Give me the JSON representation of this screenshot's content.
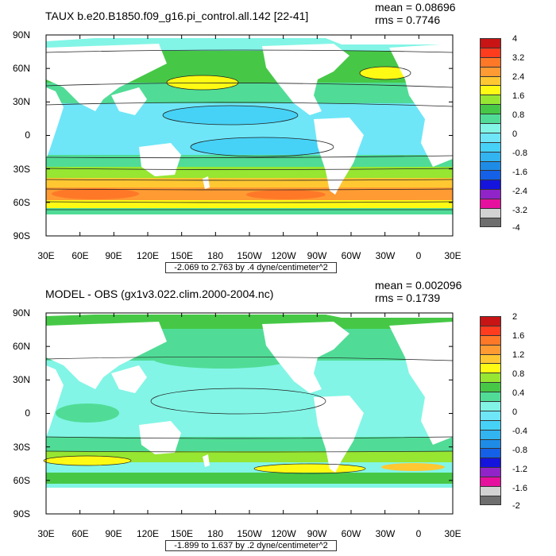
{
  "colors": {
    "top": [
      "#6e6e6e",
      "#d2d2d2",
      "#e6109e",
      "#9124c8",
      "#1414dc",
      "#1460e6",
      "#1e8ce6",
      "#32b4f0",
      "#46d2f6",
      "#6ee6f8",
      "#82f5e6",
      "#50dc96",
      "#46c846",
      "#96e632",
      "#fffa14",
      "#ffc832",
      "#ff9b32",
      "#ff7828",
      "#ff3c1e",
      "#c81414"
    ],
    "bottom": [
      "#6e6e6e",
      "#d2d2d2",
      "#e6109e",
      "#9124c8",
      "#1414dc",
      "#1460e6",
      "#1e8ce6",
      "#32b4f0",
      "#46d2f6",
      "#6ee6f8",
      "#82f5e6",
      "#50dc96",
      "#46c846",
      "#96e632",
      "#fffa14",
      "#ffc832",
      "#ff9b32",
      "#ff7828",
      "#ff3c1e",
      "#c81414"
    ]
  },
  "panels": [
    {
      "id": "top",
      "title": "TAUX b.e20.B1850.f09_g16.pi_control.all.142 [22-41]",
      "mean": "mean = 0.08696",
      "rms": "rms = 0.7746",
      "range": "-2.069 to 2.763 by .4 dyne/centimeter^2",
      "colorbar_labels": [
        "4",
        "3.2",
        "2.4",
        "1.6",
        "0.8",
        "0",
        "-0.8",
        "-1.6",
        "-2.4",
        "-3.2",
        "-4"
      ]
    },
    {
      "id": "bottom",
      "title": "MODEL - OBS (gx1v3.022.clim.2000-2004.nc)",
      "mean": "mean = 0.002096",
      "rms": "rms = 0.1739",
      "range": "-1.899 to 1.637 by .2 dyne/centimeter^2",
      "colorbar_labels": [
        "2",
        "1.6",
        "1.2",
        "0.8",
        "0.4",
        "0",
        "-0.4",
        "-0.8",
        "-1.2",
        "-1.6",
        "-2"
      ]
    }
  ],
  "lat_labels": [
    "90N",
    "60N",
    "30N",
    "0",
    "30S",
    "60S",
    "90S"
  ],
  "lon_labels": [
    "30E",
    "60E",
    "90E",
    "120E",
    "150E",
    "180",
    "150W",
    "120W",
    "90W",
    "60W",
    "30W",
    "0",
    "30E"
  ]
}
